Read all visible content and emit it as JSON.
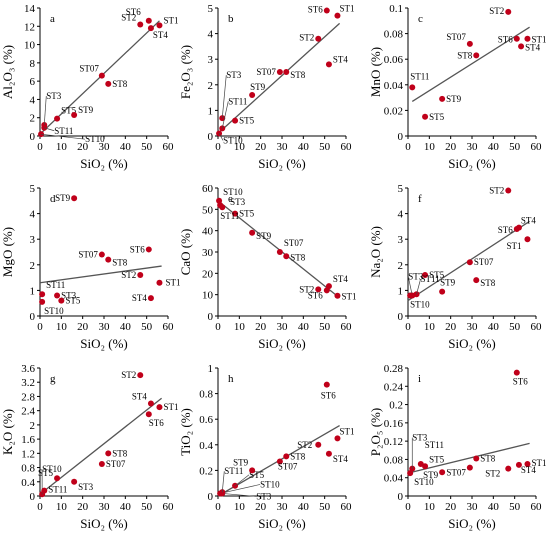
{
  "chart_data": [
    {
      "type": "scatter",
      "panel": "a",
      "xlabel": "SiO₂ (%)",
      "ylabel": "Al₂O₃ (%)",
      "xlim": [
        0,
        60
      ],
      "ylim": [
        0,
        14
      ],
      "xticks": [
        0,
        10,
        20,
        30,
        40,
        50,
        60
      ],
      "yticks": [
        0,
        2,
        4,
        6,
        8,
        10,
        12,
        14
      ],
      "yticklabels": [
        "0",
        "2",
        "4",
        "6",
        "8",
        "10",
        "12",
        "14"
      ],
      "trend": [
        [
          0,
          0.2
        ],
        [
          56,
          12.6
        ]
      ],
      "points": [
        {
          "label": "ST1",
          "x": 56,
          "y": 12.1
        },
        {
          "label": "ST2",
          "x": 47,
          "y": 12.2
        },
        {
          "label": "ST3",
          "x": 2,
          "y": 1.2
        },
        {
          "label": "ST4",
          "x": 52,
          "y": 11.8
        },
        {
          "label": "ST5",
          "x": 8,
          "y": 1.9
        },
        {
          "label": "ST6",
          "x": 51,
          "y": 12.6
        },
        {
          "label": "ST07",
          "x": 29,
          "y": 6.6
        },
        {
          "label": "ST8",
          "x": 32,
          "y": 5.7
        },
        {
          "label": "ST9",
          "x": 16,
          "y": 2.3
        },
        {
          "label": "ST10",
          "x": 0.5,
          "y": 0.2
        },
        {
          "label": "ST11",
          "x": 2,
          "y": 0.9
        }
      ]
    },
    {
      "type": "scatter",
      "panel": "b",
      "xlabel": "SiO₂ (%)",
      "ylabel": "Fe₂O₃ (%)",
      "xlim": [
        0,
        60
      ],
      "ylim": [
        0,
        5
      ],
      "xticks": [
        0,
        10,
        20,
        30,
        40,
        50,
        60
      ],
      "yticks": [
        0,
        1,
        2,
        3,
        4,
        5
      ],
      "yticklabels": [
        "0",
        "1",
        "2",
        "3",
        "4",
        "5"
      ],
      "trend": [
        [
          0,
          0.1
        ],
        [
          57,
          4.4
        ]
      ],
      "points": [
        {
          "label": "ST1",
          "x": 56,
          "y": 4.7
        },
        {
          "label": "ST2",
          "x": 47,
          "y": 3.8
        },
        {
          "label": "ST3",
          "x": 2,
          "y": 0.7
        },
        {
          "label": "ST4",
          "x": 52,
          "y": 2.8
        },
        {
          "label": "ST5",
          "x": 8,
          "y": 0.6
        },
        {
          "label": "ST6",
          "x": 51,
          "y": 4.9
        },
        {
          "label": "ST07",
          "x": 29,
          "y": 2.5
        },
        {
          "label": "ST8",
          "x": 32,
          "y": 2.5
        },
        {
          "label": "ST9",
          "x": 16,
          "y": 1.6
        },
        {
          "label": "ST10",
          "x": 0.5,
          "y": 0.1
        },
        {
          "label": "ST11",
          "x": 2,
          "y": 0.3
        }
      ]
    },
    {
      "type": "scatter",
      "panel": "c",
      "xlabel": "SiO₂ (%)",
      "ylabel": "MnO (%)",
      "xlim": [
        0,
        60
      ],
      "ylim": [
        0,
        0.1
      ],
      "xticks": [
        0,
        10,
        20,
        30,
        40,
        50,
        60
      ],
      "yticks": [
        0,
        0.02,
        0.04,
        0.06,
        0.08,
        0.1
      ],
      "yticklabels": [
        "0",
        "0.02",
        "0.04",
        "0.06",
        "0.08",
        "0.1"
      ],
      "trend": [
        [
          2,
          0.027
        ],
        [
          57,
          0.085
        ]
      ],
      "points": [
        {
          "label": "ST1",
          "x": 56,
          "y": 0.076
        },
        {
          "label": "ST2",
          "x": 47,
          "y": 0.097
        },
        {
          "label": "ST4",
          "x": 53,
          "y": 0.07
        },
        {
          "label": "ST5",
          "x": 8,
          "y": 0.015
        },
        {
          "label": "ST6",
          "x": 51,
          "y": 0.076
        },
        {
          "label": "ST07",
          "x": 29,
          "y": 0.072
        },
        {
          "label": "ST8",
          "x": 32,
          "y": 0.063
        },
        {
          "label": "ST9",
          "x": 16,
          "y": 0.029
        },
        {
          "label": "ST11",
          "x": 2,
          "y": 0.038
        }
      ]
    },
    {
      "type": "scatter",
      "panel": "d",
      "xlabel": "SiO₂ (%)",
      "ylabel": "MgO (%)",
      "xlim": [
        0,
        60
      ],
      "ylim": [
        0,
        5
      ],
      "xticks": [
        0,
        10,
        20,
        30,
        40,
        50,
        60
      ],
      "yticks": [
        0,
        1,
        2,
        3,
        4,
        5
      ],
      "yticklabels": [
        "0",
        "1",
        "2",
        "3",
        "4",
        "5"
      ],
      "trend": [
        [
          0,
          1.3
        ],
        [
          57,
          1.95
        ]
      ],
      "points": [
        {
          "label": "ST1",
          "x": 56,
          "y": 1.3
        },
        {
          "label": "ST2",
          "x": 47,
          "y": 1.6
        },
        {
          "label": "ST3",
          "x": 8,
          "y": 0.8
        },
        {
          "label": "ST4",
          "x": 52,
          "y": 0.7
        },
        {
          "label": "ST5",
          "x": 10,
          "y": 0.6
        },
        {
          "label": "ST6",
          "x": 51,
          "y": 2.6
        },
        {
          "label": "ST07",
          "x": 29,
          "y": 2.4
        },
        {
          "label": "ST8",
          "x": 32,
          "y": 2.2
        },
        {
          "label": "ST9",
          "x": 16,
          "y": 4.6
        },
        {
          "label": "ST10",
          "x": 1,
          "y": 0.55
        },
        {
          "label": "ST11",
          "x": 1,
          "y": 0.85
        }
      ]
    },
    {
      "type": "scatter",
      "panel": "e",
      "xlabel": "SiO₂ (%)",
      "ylabel": "CaO (%)",
      "xlim": [
        0,
        60
      ],
      "ylim": [
        0,
        60
      ],
      "xticks": [
        0,
        10,
        20,
        30,
        40,
        50,
        60
      ],
      "yticks": [
        0,
        10,
        20,
        30,
        40,
        50,
        60
      ],
      "yticklabels": [
        "0",
        "10",
        "20",
        "30",
        "40",
        "50",
        "60"
      ],
      "trend": [
        [
          0,
          54
        ],
        [
          57,
          8.5
        ]
      ],
      "points": [
        {
          "label": "ST1",
          "x": 56,
          "y": 9.5
        },
        {
          "label": "ST2",
          "x": 47,
          "y": 12.5
        },
        {
          "label": "ST3",
          "x": 1,
          "y": 52
        },
        {
          "label": "ST4",
          "x": 52,
          "y": 14
        },
        {
          "label": "ST5",
          "x": 8,
          "y": 48
        },
        {
          "label": "ST6",
          "x": 51,
          "y": 12
        },
        {
          "label": "ST07",
          "x": 29,
          "y": 30
        },
        {
          "label": "ST8",
          "x": 32,
          "y": 28
        },
        {
          "label": "ST9",
          "x": 16,
          "y": 39
        },
        {
          "label": "ST10",
          "x": 0.5,
          "y": 54
        },
        {
          "label": "ST11",
          "x": 2,
          "y": 51
        }
      ]
    },
    {
      "type": "scatter",
      "panel": "f",
      "xlabel": "SiO₂ (%)",
      "ylabel": "Na₂O (%)",
      "xlim": [
        0,
        60
      ],
      "ylim": [
        0,
        5
      ],
      "xticks": [
        0,
        10,
        20,
        30,
        40,
        50,
        60
      ],
      "yticks": [
        0,
        1,
        2,
        3,
        4,
        5
      ],
      "yticklabels": [
        "0",
        "1",
        "2",
        "3",
        "4",
        "5"
      ],
      "trend": [
        [
          0,
          0.6
        ],
        [
          57,
          3.7
        ]
      ],
      "points": [
        {
          "label": "ST1",
          "x": 56,
          "y": 3.0
        },
        {
          "label": "ST2",
          "x": 47,
          "y": 4.9
        },
        {
          "label": "ST3",
          "x": 2,
          "y": 0.8
        },
        {
          "label": "ST4",
          "x": 52,
          "y": 3.45
        },
        {
          "label": "ST5",
          "x": 8,
          "y": 1.6
        },
        {
          "label": "ST6",
          "x": 51,
          "y": 3.4
        },
        {
          "label": "ST07",
          "x": 29,
          "y": 2.1
        },
        {
          "label": "ST8",
          "x": 32,
          "y": 1.4
        },
        {
          "label": "ST9",
          "x": 16,
          "y": 0.95
        },
        {
          "label": "ST10",
          "x": 1,
          "y": 0.8
        },
        {
          "label": "ST11",
          "x": 4,
          "y": 0.85
        }
      ]
    },
    {
      "type": "scatter",
      "panel": "g",
      "xlabel": "SiO₂ (%)",
      "ylabel": "K₂O (%)",
      "xlim": [
        0,
        60
      ],
      "ylim": [
        0,
        3.6
      ],
      "xticks": [
        0,
        10,
        20,
        30,
        40,
        50,
        60
      ],
      "yticks": [
        0,
        0.4,
        0.8,
        1.2,
        1.6,
        2,
        2.4,
        2.8,
        3.2,
        3.6
      ],
      "yticklabels": [
        "0",
        "0.4",
        "0.8",
        "1.2",
        "1.6",
        "2",
        "2.4",
        "2.8",
        "3.2",
        "3.6"
      ],
      "trend": [
        [
          0,
          0.05
        ],
        [
          57,
          2.75
        ]
      ],
      "points": [
        {
          "label": "ST1",
          "x": 56,
          "y": 2.5
        },
        {
          "label": "ST2",
          "x": 47,
          "y": 3.4
        },
        {
          "label": "ST3",
          "x": 16,
          "y": 0.4
        },
        {
          "label": "ST4",
          "x": 52,
          "y": 2.6
        },
        {
          "label": "ST5",
          "x": 8,
          "y": 0.5
        },
        {
          "label": "ST6",
          "x": 51,
          "y": 2.3
        },
        {
          "label": "ST07",
          "x": 29,
          "y": 0.9
        },
        {
          "label": "ST8",
          "x": 32,
          "y": 1.2
        },
        {
          "label": "ST10",
          "x": 1,
          "y": 0.05
        },
        {
          "label": "ST11",
          "x": 2,
          "y": 0.15
        }
      ]
    },
    {
      "type": "scatter",
      "panel": "h",
      "xlabel": "SiO₂ (%)",
      "ylabel": "TiO₂ (%)",
      "xlim": [
        0,
        60
      ],
      "ylim": [
        0,
        1
      ],
      "xticks": [
        0,
        10,
        20,
        30,
        40,
        50,
        60
      ],
      "yticks": [
        0,
        0.2,
        0.4,
        0.6,
        0.8,
        1
      ],
      "yticklabels": [
        "0",
        "0.2",
        "0.4",
        "0.6",
        "0.8",
        "1"
      ],
      "trend": [
        [
          0,
          0.0
        ],
        [
          57,
          0.55
        ]
      ],
      "points": [
        {
          "label": "ST1",
          "x": 56,
          "y": 0.45
        },
        {
          "label": "ST2",
          "x": 47,
          "y": 0.4
        },
        {
          "label": "ST3",
          "x": 2,
          "y": 0.02
        },
        {
          "label": "ST4",
          "x": 52,
          "y": 0.33
        },
        {
          "label": "ST5",
          "x": 8,
          "y": 0.08
        },
        {
          "label": "ST6",
          "x": 51,
          "y": 0.87
        },
        {
          "label": "ST07",
          "x": 29,
          "y": 0.27
        },
        {
          "label": "ST8",
          "x": 32,
          "y": 0.31
        },
        {
          "label": "ST9",
          "x": 16,
          "y": 0.2
        },
        {
          "label": "ST10",
          "x": 1,
          "y": 0.02
        },
        {
          "label": "ST11",
          "x": 2,
          "y": 0.03
        }
      ]
    },
    {
      "type": "scatter",
      "panel": "i",
      "xlabel": "SiO₂ (%)",
      "ylabel": "P₂O₅ (%)",
      "xlim": [
        0,
        60
      ],
      "ylim": [
        0,
        0.28
      ],
      "xticks": [
        0,
        10,
        20,
        30,
        40,
        50,
        60
      ],
      "yticks": [
        0,
        0.04,
        0.08,
        0.12,
        0.16,
        0.2,
        0.24,
        0.28
      ],
      "yticklabels": [
        "0",
        "0.04",
        "0.08",
        "0.12",
        "0.16",
        "0.2",
        "0.24",
        "0.28"
      ],
      "trend": [
        [
          0,
          0.05
        ],
        [
          57,
          0.115
        ]
      ],
      "points": [
        {
          "label": "ST1",
          "x": 56,
          "y": 0.07
        },
        {
          "label": "ST2",
          "x": 47,
          "y": 0.06
        },
        {
          "label": "ST3",
          "x": 2,
          "y": 0.06
        },
        {
          "label": "ST4",
          "x": 52,
          "y": 0.068
        },
        {
          "label": "ST5",
          "x": 8,
          "y": 0.065
        },
        {
          "label": "ST6",
          "x": 51,
          "y": 0.27
        },
        {
          "label": "ST07",
          "x": 29,
          "y": 0.062
        },
        {
          "label": "ST8",
          "x": 32,
          "y": 0.082
        },
        {
          "label": "ST9",
          "x": 16,
          "y": 0.052
        },
        {
          "label": "ST10",
          "x": 1,
          "y": 0.05
        },
        {
          "label": "ST11",
          "x": 6,
          "y": 0.07
        }
      ]
    }
  ]
}
